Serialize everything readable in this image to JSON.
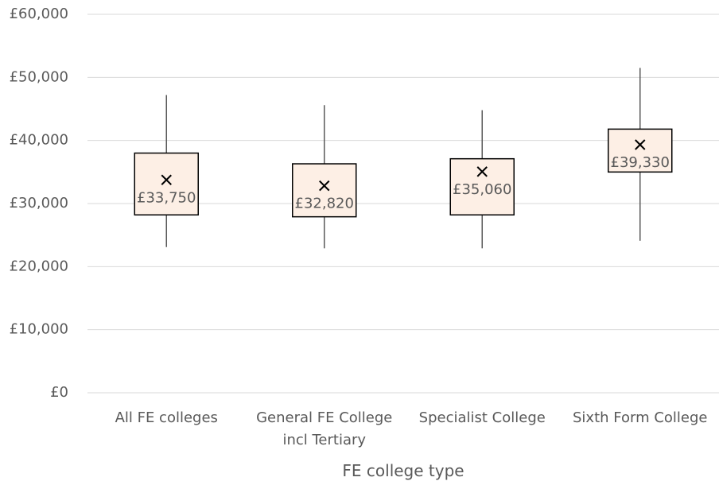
{
  "chart_data": {
    "type": "box",
    "x_label": "FE college type",
    "categories": [
      "All FE colleges",
      "General FE College incl Tertiary",
      "Specialist College",
      "Sixth Form College"
    ],
    "min": [
      23100,
      22900,
      22900,
      24100
    ],
    "q1": [
      28200,
      27900,
      28200,
      35000
    ],
    "q3": [
      38000,
      36300,
      37100,
      41800
    ],
    "max": [
      47200,
      45600,
      44800,
      51500
    ],
    "mean": [
      33750,
      32820,
      35060,
      39330
    ],
    "mean_labels": [
      "£33,750",
      "£32,820",
      "£35,060",
      "£39,330"
    ],
    "box_color": "#fdefe5",
    "ylim": [
      0,
      60000
    ],
    "yticks": [
      {
        "value": 0,
        "label": "£0"
      },
      {
        "value": 10000,
        "label": "£10,000"
      },
      {
        "value": 20000,
        "label": "£20,000"
      },
      {
        "value": 30000,
        "label": "£30,000"
      },
      {
        "value": 40000,
        "label": "£40,000"
      },
      {
        "value": 50000,
        "label": "£50,000"
      },
      {
        "value": 60000,
        "label": "£60,000"
      }
    ],
    "grid": true
  }
}
